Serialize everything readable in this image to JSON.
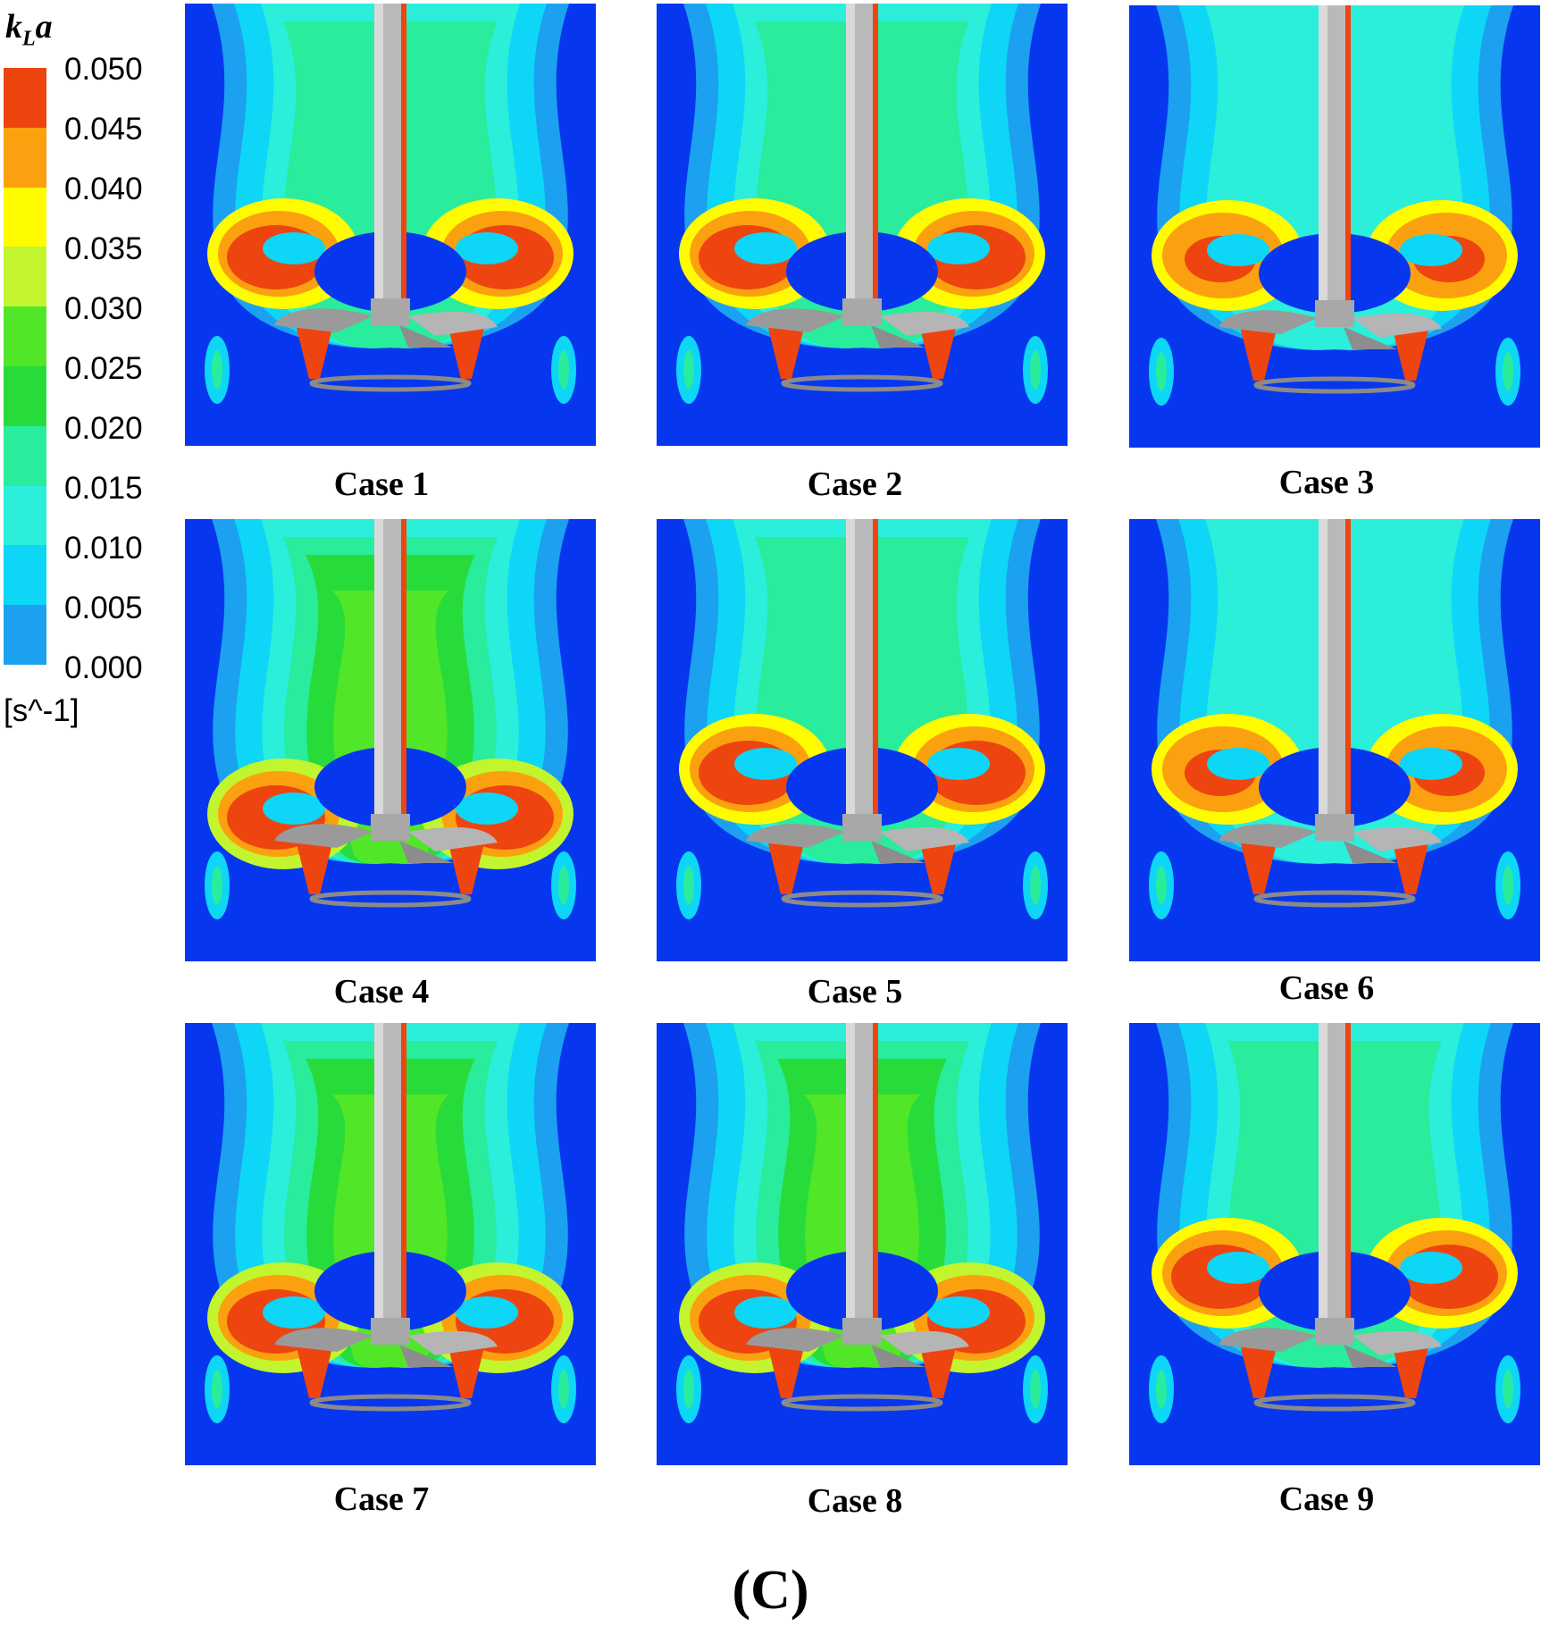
{
  "legend": {
    "title_main": "k",
    "title_sub": "L",
    "title_tail": "a",
    "ticks": [
      "0.050",
      "0.045",
      "0.040",
      "0.035",
      "0.030",
      "0.025",
      "0.020",
      "0.015",
      "0.010",
      "0.005",
      "0.000"
    ],
    "unit": "[s^-1]",
    "colors_top_to_bottom": [
      "#ee4410",
      "#fba10f",
      "#fffc00",
      "#c2f52d",
      "#52e628",
      "#27dc3a",
      "#29ec9c",
      "#2beedb",
      "#0dd6f6",
      "#1ba1ef",
      "#0637ef"
    ]
  },
  "panels": [
    {
      "label": "Case 1",
      "variant": "strong-loop"
    },
    {
      "label": "Case 2",
      "variant": "strong-loop"
    },
    {
      "label": "Case 3",
      "variant": "mixed"
    },
    {
      "label": "Case 4",
      "variant": "green-wide"
    },
    {
      "label": "Case 5",
      "variant": "strong-loop"
    },
    {
      "label": "Case 6",
      "variant": "mixed"
    },
    {
      "label": "Case 7",
      "variant": "green-wide"
    },
    {
      "label": "Case 8",
      "variant": "green-wide"
    },
    {
      "label": "Case 9",
      "variant": "strong-loop"
    }
  ],
  "figure_label": "(C)"
}
